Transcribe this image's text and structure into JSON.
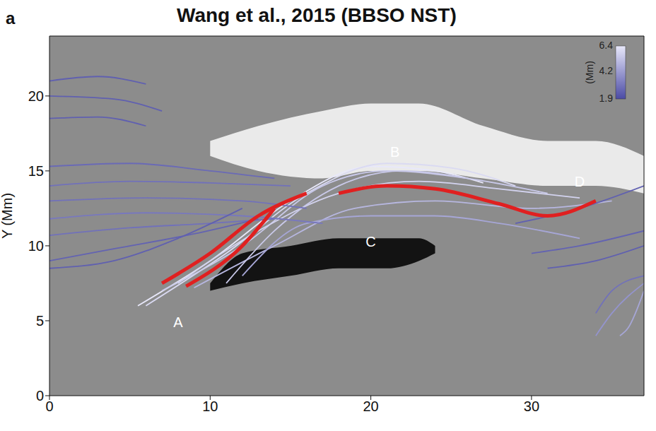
{
  "chart_data": {
    "type": "line",
    "title": "Wang et al., 2015 (BBSO NST)",
    "panel_label": "a",
    "y_label": "Y (Mm)",
    "xlim": [
      0,
      37
    ],
    "xticks": [
      0,
      10,
      20,
      30
    ],
    "ylim": [
      0,
      24
    ],
    "yticks": [
      0,
      5,
      10,
      15,
      20
    ],
    "grid": false,
    "colorbar": {
      "range": [
        1.9,
        6.4
      ],
      "ticks": [
        1.9,
        4.2,
        6.4
      ],
      "label": "(Mm)"
    },
    "regions": [
      {
        "color": "#f4f4f4",
        "x": [
          10,
          13,
          17,
          20,
          23,
          27,
          31,
          34,
          37
        ],
        "y_low": [
          16,
          15,
          14.5,
          15,
          15,
          14.5,
          14,
          14,
          13.5
        ],
        "y_high": [
          17,
          18,
          19,
          19.5,
          19.5,
          18,
          17,
          17,
          16
        ]
      },
      {
        "color": "#050505",
        "x": [
          10,
          12,
          15,
          18,
          21,
          23,
          24
        ],
        "y_low": [
          7,
          7.5,
          8,
          8.5,
          8.5,
          9,
          9.5
        ],
        "y_high": [
          7.5,
          9.5,
          10,
          10.5,
          10.5,
          10.5,
          10
        ]
      }
    ],
    "field_lines": [
      {
        "height": 6.4,
        "x": [
          5.5,
          10,
          15,
          20,
          24,
          27
        ],
        "y": [
          6,
          9,
          13,
          15.3,
          15,
          14.2
        ]
      },
      {
        "height": 6.0,
        "x": [
          6,
          11,
          16,
          21,
          25,
          29
        ],
        "y": [
          6,
          9.5,
          13.5,
          15.5,
          15.2,
          14
        ]
      },
      {
        "height": 5.5,
        "x": [
          7,
          12,
          17,
          21,
          26,
          31
        ],
        "y": [
          7,
          10,
          14,
          15,
          14.5,
          13.5
        ]
      },
      {
        "height": 5.8,
        "x": [
          8,
          13,
          18,
          23,
          28,
          33
        ],
        "y": [
          7.5,
          11,
          13.5,
          14.3,
          13.8,
          13.2
        ]
      },
      {
        "height": 5.0,
        "x": [
          9,
          14,
          19,
          24,
          30,
          35
        ],
        "y": [
          7.2,
          10,
          12.5,
          13,
          12.5,
          13
        ]
      },
      {
        "height": 5.5,
        "x": [
          11,
          14,
          18,
          22,
          26
        ],
        "y": [
          7.5,
          11,
          14,
          15,
          14.5
        ]
      },
      {
        "height": 4.5,
        "x": [
          12,
          16,
          20,
          24,
          28,
          33
        ],
        "y": [
          8,
          11.5,
          12,
          12,
          11.5,
          10.5
        ]
      },
      {
        "height": 2.5,
        "x": [
          0,
          3,
          6
        ],
        "y": [
          21,
          21.3,
          20.8
        ]
      },
      {
        "height": 2.5,
        "x": [
          0,
          4,
          7
        ],
        "y": [
          20,
          19.8,
          19
        ]
      },
      {
        "height": 2.5,
        "x": [
          0,
          3,
          6
        ],
        "y": [
          18.5,
          18.6,
          18
        ]
      },
      {
        "height": 2.8,
        "x": [
          0,
          5,
          10,
          14
        ],
        "y": [
          15.3,
          15.5,
          15,
          14.5
        ]
      },
      {
        "height": 3.0,
        "x": [
          0,
          5,
          10,
          15
        ],
        "y": [
          14,
          14.3,
          14.2,
          14
        ]
      },
      {
        "height": 3.0,
        "x": [
          0,
          6,
          12,
          16
        ],
        "y": [
          13,
          13.2,
          13,
          12.5
        ]
      },
      {
        "height": 3.2,
        "x": [
          0,
          6,
          12,
          17
        ],
        "y": [
          11.8,
          12.2,
          12,
          11.5
        ]
      },
      {
        "height": 3.0,
        "x": [
          0,
          5,
          10,
          14
        ],
        "y": [
          10.7,
          11.2,
          11.5,
          11.8
        ]
      },
      {
        "height": 2.6,
        "x": [
          0,
          4,
          9,
          13
        ],
        "y": [
          9,
          9.8,
          10.8,
          11.8
        ]
      },
      {
        "height": 2.5,
        "x": [
          0,
          4,
          8,
          12
        ],
        "y": [
          8.5,
          9,
          10.5,
          12.5
        ]
      },
      {
        "height": 2.5,
        "x": [
          29,
          33,
          37
        ],
        "y": [
          11.5,
          12.5,
          14
        ]
      },
      {
        "height": 2.6,
        "x": [
          30,
          33,
          37
        ],
        "y": [
          9.5,
          10,
          11
        ]
      },
      {
        "height": 2.5,
        "x": [
          31,
          34,
          37
        ],
        "y": [
          8.5,
          9,
          10
        ]
      },
      {
        "height": 3.0,
        "x": [
          34,
          35,
          37
        ],
        "y": [
          5.5,
          7,
          8
        ]
      },
      {
        "height": 4.0,
        "x": [
          34,
          35,
          37
        ],
        "y": [
          4,
          5.5,
          7.5
        ]
      },
      {
        "height": 4.5,
        "x": [
          35.5,
          36,
          37
        ],
        "y": [
          4,
          4.5,
          7
        ]
      }
    ],
    "flux_rope": {
      "color": "#e02020",
      "segments": [
        {
          "x": [
            7,
            10,
            13,
            16
          ],
          "y": [
            7.5,
            9.5,
            12,
            13.5
          ]
        },
        {
          "x": [
            8.5,
            12,
            14
          ],
          "y": [
            7.3,
            10,
            12.5
          ]
        },
        {
          "x": [
            18,
            21,
            24,
            28,
            31,
            34
          ],
          "y": [
            13.5,
            14,
            13.8,
            12.8,
            12,
            13
          ]
        }
      ]
    },
    "annotations": [
      {
        "text": "A",
        "x": 8,
        "y": 4.8
      },
      {
        "text": "B",
        "x": 21.5,
        "y": 16.2
      },
      {
        "text": "C",
        "x": 20,
        "y": 10.2
      },
      {
        "text": "D",
        "x": 33,
        "y": 14.2
      }
    ]
  }
}
